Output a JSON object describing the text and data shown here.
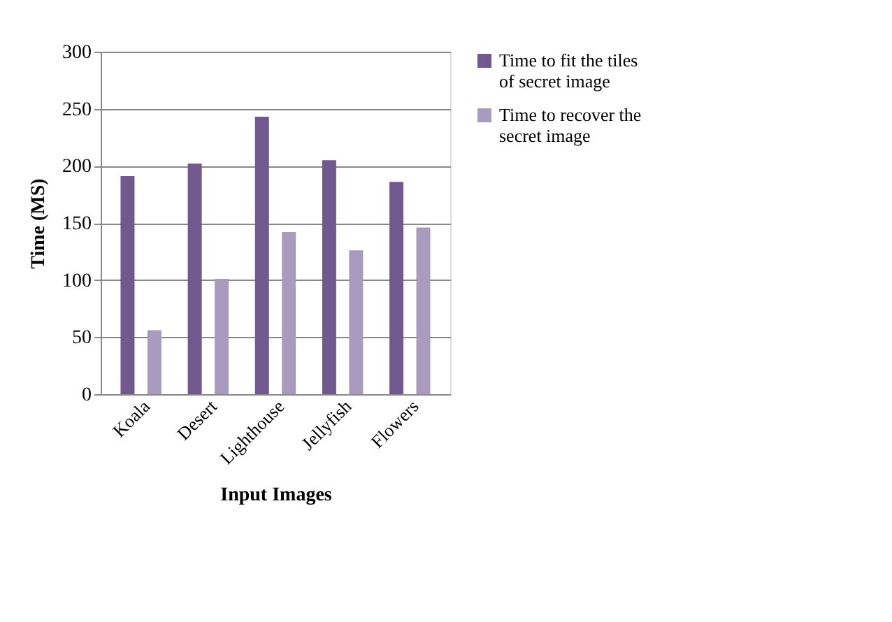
{
  "chart_data": {
    "type": "bar",
    "xlabel": "Input Images",
    "ylabel": "Time (MS)",
    "categories": [
      "Koala",
      "Desert",
      "Lighthouse",
      "Jellyfish",
      "Flowers"
    ],
    "series": [
      {
        "name": "Time to fit the tiles of secret image",
        "color": "#71588f",
        "values": [
          191,
          202,
          243,
          205,
          186
        ]
      },
      {
        "name": "Time to recover the secret image",
        "color": "#a99bbd",
        "values": [
          56,
          101,
          142,
          126,
          146
        ]
      }
    ],
    "ylim": [
      0,
      300
    ],
    "yticks": [
      0,
      50,
      100,
      150,
      200,
      250,
      300
    ],
    "grid": "y",
    "legend": "right"
  }
}
